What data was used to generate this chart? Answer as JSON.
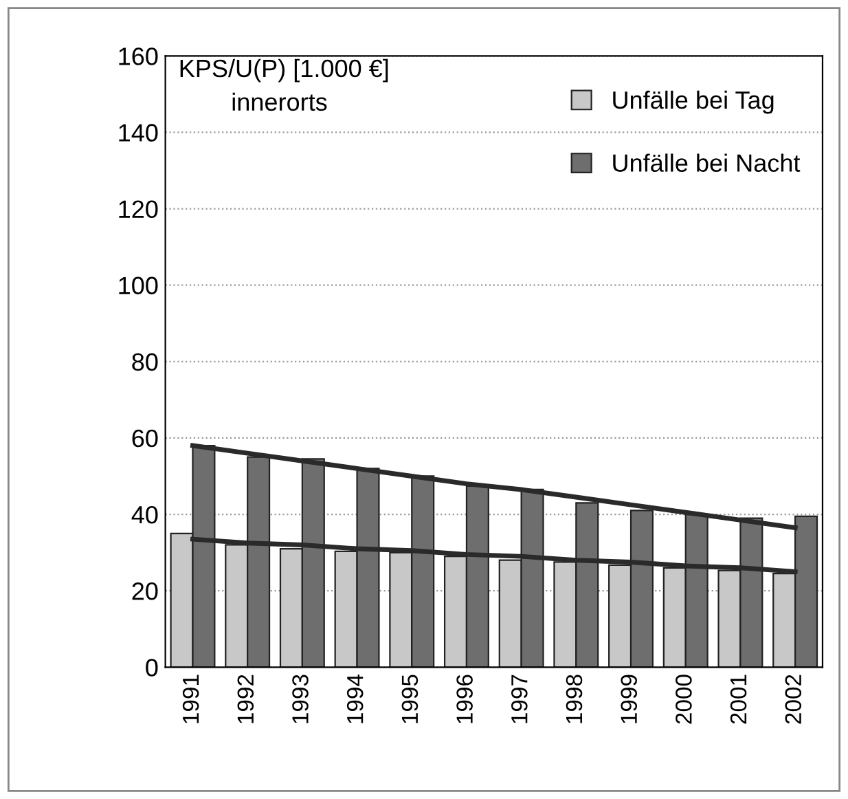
{
  "chart_data": {
    "type": "bar",
    "ylabel": "KPS/U(P) [1.000 €]",
    "subtitle": "innerorts",
    "categories": [
      "1991",
      "1992",
      "1993",
      "1994",
      "1995",
      "1996",
      "1997",
      "1998",
      "1999",
      "2000",
      "2001",
      "2002"
    ],
    "series": [
      {
        "name": "Unfälle bei Tag",
        "color": "#c8c8c8",
        "values": [
          35,
          32,
          31,
          30.3,
          30,
          29,
          28,
          27.5,
          26.7,
          26,
          25.3,
          24.5
        ]
      },
      {
        "name": "Unfälle bei Nacht",
        "color": "#6e6e6e",
        "values": [
          58,
          55,
          54.5,
          52,
          50,
          47.4,
          46.5,
          43,
          41,
          40,
          39,
          39.5
        ]
      },
      {
        "type": "line",
        "color": "#2a2a2a",
        "values": [
          58,
          56,
          54,
          52,
          50,
          48,
          46.5,
          44.5,
          42.5,
          40.5,
          38.5,
          36.5
        ]
      },
      {
        "type": "line",
        "color": "#2a2a2a",
        "values": [
          33.5,
          32.5,
          32,
          31,
          30.5,
          29.5,
          29,
          28,
          27.5,
          26.5,
          26,
          25
        ]
      }
    ],
    "ylim": [
      0,
      160
    ],
    "yticks": [
      0,
      20,
      40,
      60,
      80,
      100,
      120,
      140,
      160
    ],
    "grid": "y",
    "legend": "top right"
  }
}
